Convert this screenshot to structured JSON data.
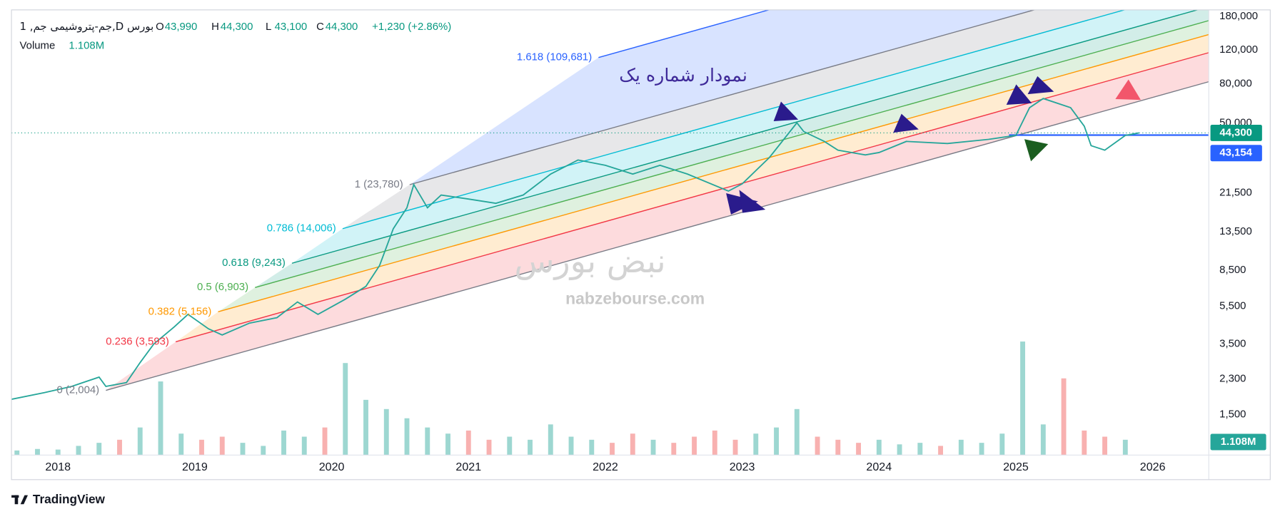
{
  "chart_data": {
    "type": "line",
    "symbol": "1 ,جم-پتروشیمی جم,D بورس",
    "ohlc": [
      {
        "label": "O",
        "value": "43,990"
      },
      {
        "label": "H",
        "value": "44,300"
      },
      {
        "label": "L",
        "value": "43,100"
      },
      {
        "label": "C",
        "value": "44,300"
      }
    ],
    "change": "+1,230 (+2.86%)",
    "annotation": "نمودار شماره یک",
    "watermark": [
      "نبض بورس",
      "nabzebourse.com"
    ],
    "brand": "TradingView",
    "color": "#26a69a",
    "x": [
      2017.66,
      2017.9,
      2018.1,
      2018.3,
      2018.35,
      2018.5,
      2018.6,
      2018.7,
      2018.85,
      2018.95,
      2019.1,
      2019.2,
      2019.4,
      2019.6,
      2019.75,
      2019.9,
      2020.1,
      2020.25,
      2020.35,
      2020.45,
      2020.55,
      2020.6,
      2020.7,
      2020.8,
      2021.0,
      2021.2,
      2021.4,
      2021.6,
      2021.8,
      2022.0,
      2022.2,
      2022.4,
      2022.6,
      2022.9,
      2023.0,
      2023.2,
      2023.4,
      2023.45,
      2023.6,
      2023.7,
      2023.9,
      2024.0,
      2024.2,
      2024.5,
      2024.8,
      2025.0,
      2025.1,
      2025.2,
      2025.4,
      2025.5,
      2025.55,
      2025.65,
      2025.8,
      2025.9
    ],
    "values": [
      1800,
      1950,
      2100,
      2350,
      2100,
      2200,
      2800,
      3500,
      4300,
      5000,
      4200,
      3900,
      4500,
      4800,
      5800,
      5000,
      6000,
      7000,
      9000,
      14000,
      18000,
      23780,
      18000,
      21000,
      20000,
      19000,
      21000,
      27000,
      32000,
      30000,
      27000,
      30000,
      27000,
      22000,
      24000,
      33000,
      50000,
      45000,
      40000,
      36000,
      34000,
      35000,
      40000,
      39000,
      41000,
      43000,
      60000,
      67000,
      60000,
      48000,
      38000,
      36000,
      43000,
      44300
    ],
    "xlim": [
      2017.66,
      2026.41
    ],
    "xticks": [
      2018,
      2019,
      2020,
      2021,
      2022,
      2023,
      2024,
      2025,
      2026
    ],
    "ylim": [
      920,
      194500
    ],
    "log_scale": true,
    "grid": false,
    "yticks": [
      {
        "value": 1500,
        "label": "1,500"
      },
      {
        "value": 2300,
        "label": "2,300"
      },
      {
        "value": 3500,
        "label": "3,500"
      },
      {
        "value": 5500,
        "label": "5,500"
      },
      {
        "value": 8500,
        "label": "8,500"
      },
      {
        "value": 13500,
        "label": "13,500"
      },
      {
        "value": 21500,
        "label": "21,500"
      },
      {
        "value": 50000,
        "label": "50,000"
      },
      {
        "value": 80000,
        "label": "80,000"
      },
      {
        "value": 120000,
        "label": "120,000"
      },
      {
        "value": 180000,
        "label": "180,000"
      }
    ],
    "last_price": {
      "value": 44300,
      "label": "44,300",
      "color": "#089981"
    },
    "trend_price": {
      "value": 43154,
      "label": "43,154",
      "color": "#2962ff",
      "x": 2024.95
    },
    "fib_levels": [
      {
        "label": "0 (2,004)",
        "color": "#787b86",
        "x": [
          2018.35,
          2026.41
        ],
        "values": [
          2004,
          82000
        ]
      },
      {
        "label": "0.236 (3,593)",
        "color": "#f23645",
        "x": [
          2018.86,
          2026.41
        ],
        "values": [
          3593,
          116300
        ]
      },
      {
        "label": "0.382 (5,156)",
        "color": "#ff9800",
        "x": [
          2019.17,
          2026.41
        ],
        "values": [
          5156,
          144600
        ]
      },
      {
        "label": "0.5 (6,903)",
        "color": "#4caf50",
        "x": [
          2019.44,
          2026.41
        ],
        "values": [
          6903,
          171000
        ]
      },
      {
        "label": "0.618 (9,243)",
        "color": "#089981",
        "x": [
          2019.71,
          2026.41
        ],
        "values": [
          9243,
          202200
        ]
      },
      {
        "label": "0.786 (14,006)",
        "color": "#00bcd4",
        "x": [
          2020.08,
          2026.41
        ],
        "values": [
          14006,
          258400
        ]
      },
      {
        "label": "1 (23,780)",
        "color": "#787b86",
        "x": [
          2020.57,
          2026.41
        ],
        "values": [
          23780,
          350000
        ]
      },
      {
        "label": "1.618 (109,681)",
        "color": "#2962ff",
        "x": [
          2021.95,
          2026.41
        ],
        "values": [
          109681,
          855000
        ]
      }
    ],
    "volume": {
      "label": "Volume",
      "value_label": "1.108M",
      "up_color": "#26a69a",
      "down_color": "#ef5350",
      "vlim": [
        0,
        4000000
      ],
      "x": [
        2017.7,
        2017.85,
        2018.0,
        2018.15,
        2018.3,
        2018.45,
        2018.6,
        2018.75,
        2018.9,
        2019.05,
        2019.2,
        2019.35,
        2019.5,
        2019.65,
        2019.8,
        2019.95,
        2020.1,
        2020.25,
        2020.4,
        2020.55,
        2020.7,
        2020.85,
        2021.0,
        2021.15,
        2021.3,
        2021.45,
        2021.6,
        2021.75,
        2021.9,
        2022.05,
        2022.2,
        2022.35,
        2022.5,
        2022.65,
        2022.8,
        2022.95,
        2023.1,
        2023.25,
        2023.4,
        2023.55,
        2023.7,
        2023.85,
        2024.0,
        2024.15,
        2024.3,
        2024.45,
        2024.6,
        2024.75,
        2024.9,
        2025.05,
        2025.2,
        2025.35,
        2025.5,
        2025.65,
        2025.8
      ],
      "values": [
        150000,
        200000,
        180000,
        300000,
        400000,
        500000,
        900000,
        2400000,
        700000,
        500000,
        600000,
        400000,
        300000,
        800000,
        600000,
        900000,
        3000000,
        1800000,
        1500000,
        1200000,
        900000,
        700000,
        800000,
        500000,
        600000,
        500000,
        1000000,
        600000,
        500000,
        400000,
        700000,
        500000,
        400000,
        600000,
        800000,
        500000,
        700000,
        900000,
        1500000,
        600000,
        500000,
        400000,
        500000,
        350000,
        400000,
        300000,
        500000,
        400000,
        700000,
        3700000,
        1000000,
        2500000,
        800000,
        600000,
        500000
      ]
    }
  }
}
